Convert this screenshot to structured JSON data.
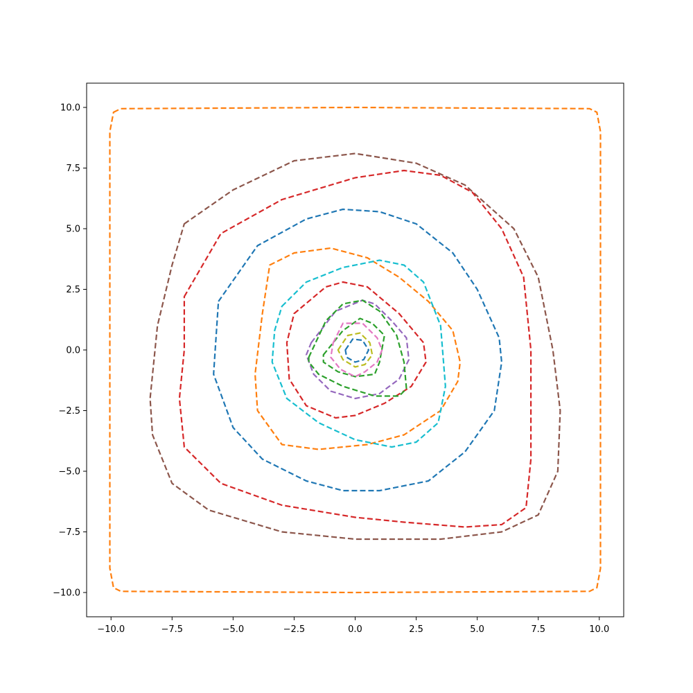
{
  "chart_data": {
    "type": "line",
    "title": "",
    "xlabel": "",
    "ylabel": "",
    "xlim": [
      -11,
      11
    ],
    "ylim": [
      -11,
      11
    ],
    "grid": false,
    "legend": "none",
    "line_style": "dashed",
    "x_ticks": [
      {
        "value": -10,
        "label": "−10.0"
      },
      {
        "value": -7.5,
        "label": "−7.5"
      },
      {
        "value": -5,
        "label": "−5.0"
      },
      {
        "value": -2.5,
        "label": "−2.5"
      },
      {
        "value": 0,
        "label": "0.0"
      },
      {
        "value": 2.5,
        "label": "2.5"
      },
      {
        "value": 5,
        "label": "5.0"
      },
      {
        "value": 7.5,
        "label": "7.5"
      },
      {
        "value": 10,
        "label": "10.0"
      }
    ],
    "y_ticks": [
      {
        "value": -10,
        "label": "−10.0"
      },
      {
        "value": -7.5,
        "label": "−7.5"
      },
      {
        "value": -5,
        "label": "−5.0"
      },
      {
        "value": -2.5,
        "label": "−2.5"
      },
      {
        "value": 0,
        "label": "0.0"
      },
      {
        "value": 2.5,
        "label": "2.5"
      },
      {
        "value": 5,
        "label": "5.0"
      },
      {
        "value": 7.5,
        "label": "7.5"
      },
      {
        "value": 10,
        "label": "10.0"
      }
    ],
    "series": [
      {
        "color": "#ff7f0e",
        "closed": true,
        "points": [
          [
            -9.9,
            9.8
          ],
          [
            -9.6,
            9.95
          ],
          [
            0,
            10
          ],
          [
            9.6,
            9.95
          ],
          [
            9.9,
            9.8
          ],
          [
            10.05,
            9.0
          ],
          [
            10.05,
            0
          ],
          [
            10.05,
            -9.0
          ],
          [
            9.9,
            -9.8
          ],
          [
            9.6,
            -9.95
          ],
          [
            0,
            -10
          ],
          [
            -9.6,
            -9.95
          ],
          [
            -9.9,
            -9.8
          ],
          [
            -10.05,
            -9.0
          ],
          [
            -10.05,
            0
          ],
          [
            -10.05,
            9.0
          ]
        ]
      },
      {
        "color": "#8c564b",
        "closed": true,
        "points": [
          [
            -7,
            5.2
          ],
          [
            -5,
            6.6
          ],
          [
            -2.5,
            7.8
          ],
          [
            0,
            8.1
          ],
          [
            2.5,
            7.7
          ],
          [
            4.5,
            6.8
          ],
          [
            6.5,
            5.0
          ],
          [
            7.5,
            3.0
          ],
          [
            8.1,
            0
          ],
          [
            8.4,
            -2.5
          ],
          [
            8.3,
            -5
          ],
          [
            7.5,
            -6.8
          ],
          [
            6,
            -7.5
          ],
          [
            3.5,
            -7.8
          ],
          [
            0,
            -7.8
          ],
          [
            -3,
            -7.5
          ],
          [
            -6,
            -6.6
          ],
          [
            -7.5,
            -5.5
          ],
          [
            -8.3,
            -3.5
          ],
          [
            -8.4,
            -2
          ],
          [
            -8.1,
            1
          ],
          [
            -7.5,
            3.5
          ]
        ]
      },
      {
        "color": "#d62728",
        "closed": true,
        "points": [
          [
            -7,
            2.2
          ],
          [
            -5.5,
            4.8
          ],
          [
            -3,
            6.2
          ],
          [
            0,
            7.1
          ],
          [
            2,
            7.4
          ],
          [
            3.5,
            7.2
          ],
          [
            4.8,
            6.5
          ],
          [
            6,
            5.0
          ],
          [
            6.9,
            3
          ],
          [
            7.2,
            0
          ],
          [
            7.2,
            -4.5
          ],
          [
            7,
            -6.5
          ],
          [
            6,
            -7.2
          ],
          [
            4.5,
            -7.3
          ],
          [
            2,
            -7.1
          ],
          [
            0,
            -6.9
          ],
          [
            -3,
            -6.4
          ],
          [
            -5.5,
            -5.5
          ],
          [
            -7,
            -4
          ],
          [
            -7.2,
            -2
          ],
          [
            -7,
            0
          ]
        ]
      },
      {
        "color": "#1f77b4",
        "closed": true,
        "points": [
          [
            -5.6,
            2
          ],
          [
            -4,
            4.3
          ],
          [
            -2,
            5.4
          ],
          [
            -0.5,
            5.8
          ],
          [
            1,
            5.7
          ],
          [
            2.5,
            5.2
          ],
          [
            4,
            4.0
          ],
          [
            5,
            2.5
          ],
          [
            5.9,
            0.5
          ],
          [
            6,
            -0.5
          ],
          [
            5.7,
            -2.5
          ],
          [
            4.5,
            -4.2
          ],
          [
            3,
            -5.4
          ],
          [
            1,
            -5.8
          ],
          [
            -0.5,
            -5.8
          ],
          [
            -2,
            -5.4
          ],
          [
            -3.8,
            -4.5
          ],
          [
            -5,
            -3.2
          ],
          [
            -5.8,
            -1
          ],
          [
            -5.7,
            0.5
          ]
        ]
      },
      {
        "color": "#ff7f0e",
        "closed": true,
        "points": [
          [
            -3.5,
            3.5
          ],
          [
            -2.5,
            4
          ],
          [
            -1,
            4.2
          ],
          [
            0.5,
            3.8
          ],
          [
            1.8,
            3.0
          ],
          [
            3,
            2
          ],
          [
            4,
            0.8
          ],
          [
            4.3,
            -0.5
          ],
          [
            4.2,
            -1.3
          ],
          [
            3.5,
            -2.5
          ],
          [
            2,
            -3.5
          ],
          [
            0.5,
            -3.9
          ],
          [
            -1.5,
            -4.1
          ],
          [
            -3,
            -3.9
          ],
          [
            -4,
            -2.5
          ],
          [
            -4.1,
            -1
          ],
          [
            -3.8,
            1.5
          ]
        ]
      },
      {
        "color": "#17becf",
        "closed": true,
        "points": [
          [
            -3,
            1.8
          ],
          [
            -2,
            2.8
          ],
          [
            -0.5,
            3.4
          ],
          [
            1,
            3.7
          ],
          [
            2,
            3.5
          ],
          [
            2.8,
            2.8
          ],
          [
            3.5,
            1
          ],
          [
            3.7,
            -1.5
          ],
          [
            3.4,
            -3
          ],
          [
            2.5,
            -3.8
          ],
          [
            1.5,
            -4
          ],
          [
            0,
            -3.7
          ],
          [
            -1.5,
            -3
          ],
          [
            -2.8,
            -2
          ],
          [
            -3.4,
            -0.5
          ],
          [
            -3.3,
            0.8
          ]
        ]
      },
      {
        "color": "#d62728",
        "closed": true,
        "points": [
          [
            -2.5,
            1.5
          ],
          [
            -1.2,
            2.6
          ],
          [
            -0.5,
            2.8
          ],
          [
            0.5,
            2.6
          ],
          [
            1.8,
            1.5
          ],
          [
            2.8,
            0.3
          ],
          [
            2.9,
            -0.5
          ],
          [
            2.3,
            -1.5
          ],
          [
            1.2,
            -2.2
          ],
          [
            0,
            -2.7
          ],
          [
            -0.8,
            -2.8
          ],
          [
            -2,
            -2.3
          ],
          [
            -2.7,
            -1.2
          ],
          [
            -2.8,
            0.3
          ]
        ]
      },
      {
        "color": "#9467bd",
        "closed": true,
        "points": [
          [
            -1.8,
            0.3
          ],
          [
            -0.8,
            1.6
          ],
          [
            0.3,
            2.05
          ],
          [
            0.8,
            1.9
          ],
          [
            1.5,
            1.2
          ],
          [
            2.1,
            0.5
          ],
          [
            2.2,
            -0.4
          ],
          [
            1.8,
            -1.2
          ],
          [
            1,
            -1.8
          ],
          [
            0,
            -2
          ],
          [
            -1,
            -1.7
          ],
          [
            -1.7,
            -1
          ],
          [
            -2,
            -0.2
          ]
        ]
      },
      {
        "color": "#2ca02c",
        "closed": true,
        "points": [
          [
            -1.3,
            -0.2
          ],
          [
            -0.5,
            0.8
          ],
          [
            0.2,
            1.3
          ],
          [
            0.7,
            1.1
          ],
          [
            1.2,
            0.6
          ],
          [
            1,
            -0.5
          ],
          [
            0.8,
            -1
          ],
          [
            0,
            -1.1
          ],
          [
            -0.7,
            -0.9
          ],
          [
            -1.3,
            -0.5
          ]
        ]
      },
      {
        "color": "#2ca02c",
        "closed": true,
        "points": [
          [
            -1.9,
            -0.3
          ],
          [
            -1.2,
            1.2
          ],
          [
            -0.5,
            1.9
          ],
          [
            0.3,
            2.05
          ],
          [
            1,
            1.6
          ],
          [
            1.7,
            0.6
          ],
          [
            2,
            -0.5
          ],
          [
            2.1,
            -1.6
          ],
          [
            1.8,
            -1.9
          ],
          [
            0.8,
            -1.9
          ],
          [
            -0.5,
            -1.5
          ],
          [
            -1.5,
            -1
          ],
          [
            -1.9,
            -0.5
          ]
        ]
      },
      {
        "color": "#e377c2",
        "closed": true,
        "points": [
          [
            -0.9,
            0.3
          ],
          [
            -0.5,
            1.1
          ],
          [
            0.3,
            1.1
          ],
          [
            0.9,
            0.5
          ],
          [
            1.1,
            0
          ],
          [
            0.9,
            -0.5
          ],
          [
            0.4,
            -0.9
          ],
          [
            0,
            -1.1
          ],
          [
            -0.6,
            -0.8
          ],
          [
            -1,
            -0.3
          ]
        ]
      },
      {
        "color": "#bcbd22",
        "closed": true,
        "points": [
          [
            -0.7,
            0
          ],
          [
            -0.3,
            0.6
          ],
          [
            0.2,
            0.7
          ],
          [
            0.6,
            0.3
          ],
          [
            0.7,
            -0.2
          ],
          [
            0.4,
            -0.6
          ],
          [
            0,
            -0.7
          ],
          [
            -0.5,
            -0.4
          ]
        ]
      },
      {
        "color": "#1f77b4",
        "closed": true,
        "points": [
          [
            -0.4,
            0
          ],
          [
            -0.1,
            0.45
          ],
          [
            0.3,
            0.4
          ],
          [
            0.55,
            0
          ],
          [
            0.35,
            -0.4
          ],
          [
            0,
            -0.5
          ],
          [
            -0.35,
            -0.3
          ]
        ]
      }
    ]
  }
}
